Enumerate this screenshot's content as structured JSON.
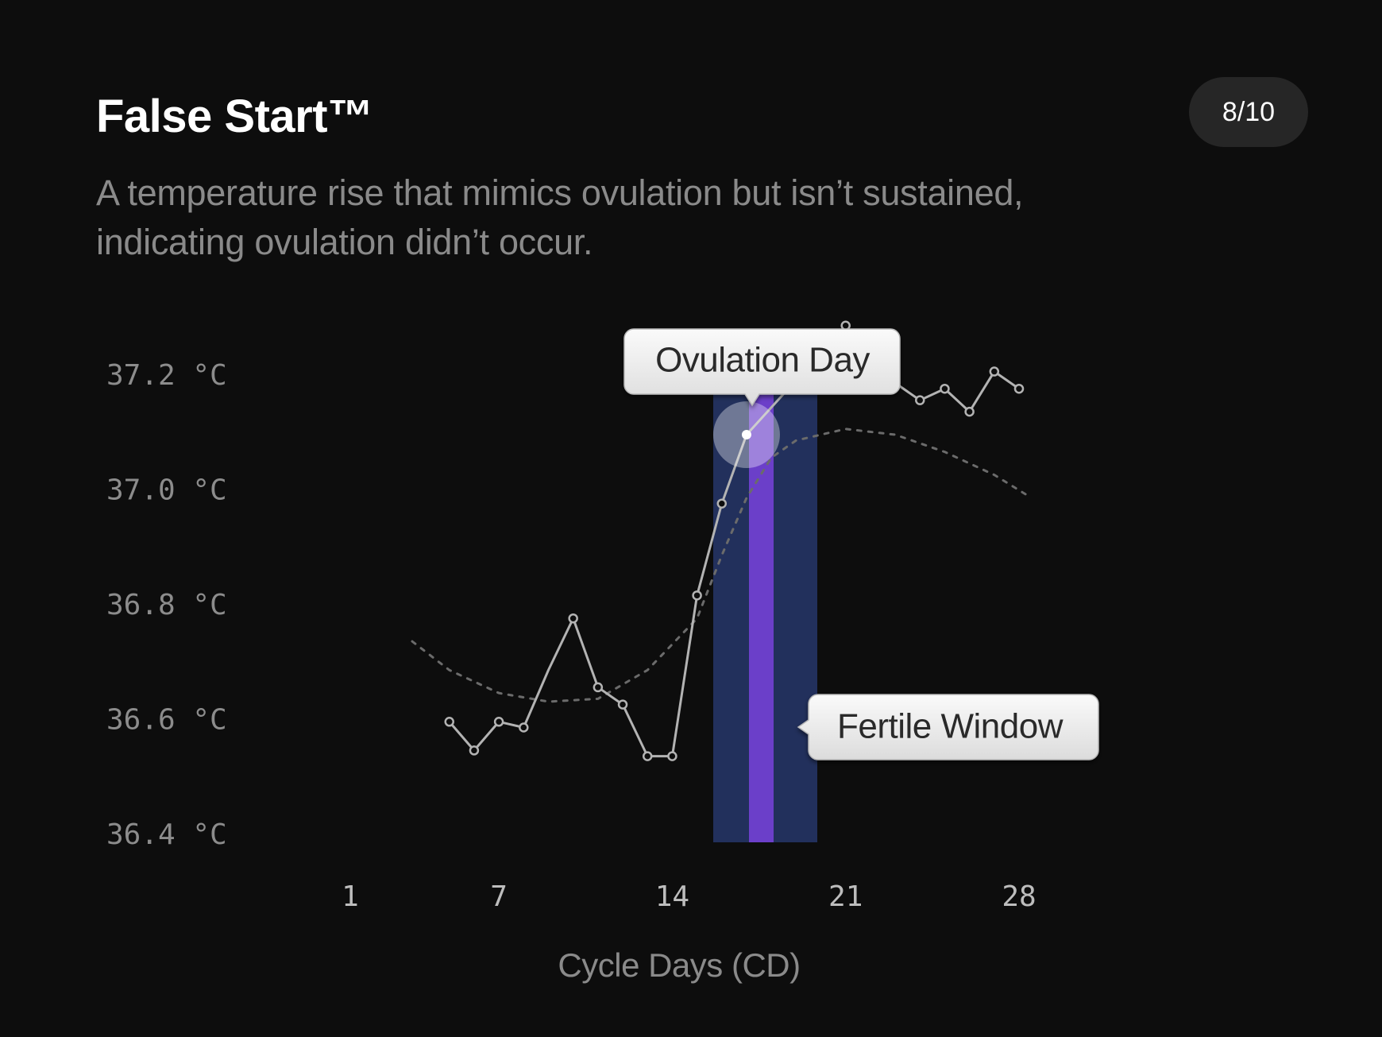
{
  "header": {
    "title": "False Start™",
    "subtitle": "A temperature rise that mimics ovulation but isn’t sustained, indicating ovulation didn’t occur.",
    "page_indicator": "8/10"
  },
  "chart_data": {
    "type": "line",
    "title": "False Start™",
    "xlabel": "Cycle Days (CD)",
    "ylabel": "",
    "x_ticks": [
      1,
      7,
      14,
      21,
      28
    ],
    "x_tick_labels": [
      "1",
      "7",
      "14",
      "21",
      "28"
    ],
    "y_ticks": [
      36.4,
      36.6,
      36.8,
      37.0,
      37.2
    ],
    "y_tick_labels": [
      "36.4 °C",
      "36.6 °C",
      "36.8 °C",
      "37.0 °C",
      "37.2 °C"
    ],
    "xlim": [
      0,
      32
    ],
    "ylim": [
      36.35,
      37.25
    ],
    "grid": true,
    "series": [
      {
        "role": "temperature",
        "points": [
          [
            5,
            36.61
          ],
          [
            6,
            36.56
          ],
          [
            7,
            36.61
          ],
          [
            8,
            36.6
          ],
          [
            9,
            36.7
          ],
          [
            10,
            36.79
          ],
          [
            11,
            36.67
          ],
          [
            12,
            36.64
          ],
          [
            13,
            36.55
          ],
          [
            14,
            36.55
          ],
          [
            15,
            36.83
          ],
          [
            16,
            36.99
          ],
          [
            17,
            37.11
          ],
          [
            21,
            37.3
          ],
          [
            22,
            37.2
          ],
          [
            23,
            37.2
          ],
          [
            24,
            37.17
          ],
          [
            25,
            37.19
          ],
          [
            26,
            37.15
          ],
          [
            27,
            37.22
          ],
          [
            28,
            37.19
          ]
        ],
        "hidden_x": [
          9
        ]
      },
      {
        "role": "trend",
        "points": [
          [
            3.5,
            36.75
          ],
          [
            5,
            36.7
          ],
          [
            7,
            36.66
          ],
          [
            9,
            36.645
          ],
          [
            11,
            36.65
          ],
          [
            13,
            36.7
          ],
          [
            15,
            36.79
          ],
          [
            16,
            36.9
          ],
          [
            17,
            37.0
          ],
          [
            18,
            37.07
          ],
          [
            19,
            37.1
          ],
          [
            21,
            37.12
          ],
          [
            23,
            37.11
          ],
          [
            25,
            37.08
          ],
          [
            27,
            37.04
          ],
          [
            28.5,
            37.0
          ]
        ]
      }
    ],
    "fertile_window": {
      "label": "Fertile Window",
      "x_start": 15.5,
      "x_end": 19.5
    },
    "ovulation_day": {
      "label": "Ovulation Day",
      "x": 17,
      "y": 37.11
    },
    "colors": {
      "background": "#0d0d0d",
      "line": "#b3b3b3",
      "trend": "#6b6b6b",
      "fertile_window": "#22305c",
      "ovulation_band": "#6b3fc9",
      "grid": "#2a2a2a",
      "callout_bg": "#f0f0f0"
    }
  }
}
